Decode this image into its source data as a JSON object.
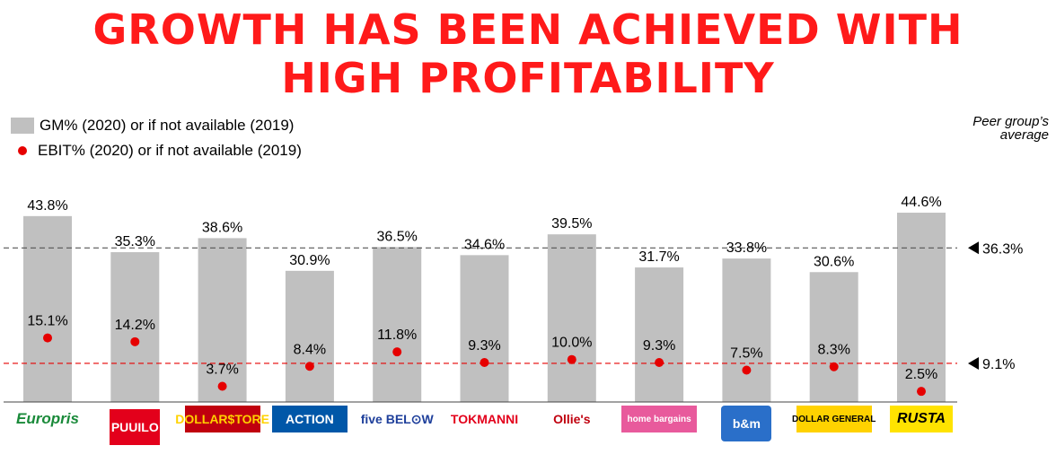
{
  "title": {
    "line1": "GROWTH HAS BEEN ACHIEVED WITH",
    "line2": "HIGH PROFITABILITY"
  },
  "legend": {
    "gm": "GM% (2020) or if not available (2019)",
    "ebit": "EBIT% (2020) or if not available (2019)"
  },
  "peer_label": "Peer group’s average",
  "colors": {
    "title": "#ff1a1a",
    "bar": "#c0c0c0",
    "dot": "#e60000",
    "gm_avg_line": "#555555",
    "ebit_avg_line": "#e60000"
  },
  "logos": [
    {
      "text": "Europris",
      "color": "#1a8a3a",
      "bg": ""
    },
    {
      "text": "PUUILO",
      "color": "#ffffff",
      "bg": "#e3001b"
    },
    {
      "text": "DOLLAR$TORE",
      "color": "#ffd200",
      "bg": "#c0000e"
    },
    {
      "text": "ACTION",
      "color": "#ffffff",
      "bg": "#0057a8"
    },
    {
      "text": "five BEL⊙W",
      "color": "#1e3f9b",
      "bg": ""
    },
    {
      "text": "TOKMANNI",
      "color": "#e3001b",
      "bg": ""
    },
    {
      "text": "Ollie's",
      "color": "#c0000e",
      "bg": ""
    },
    {
      "text": "home bargains",
      "color": "#ffffff",
      "bg": "#e85a9c"
    },
    {
      "text": "b&m",
      "color": "#ffffff",
      "bg": "#2a6fc9"
    },
    {
      "text": "DOLLAR GENERAL",
      "color": "#000000",
      "bg": "#ffd200"
    },
    {
      "text": "RUSTA",
      "color": "#000000",
      "bg": "#ffe300"
    }
  ],
  "chart_data": {
    "type": "bar",
    "categories": [
      "Europris",
      "Puuilo",
      "Dollarstore",
      "Action",
      "Five Below",
      "Tokmanni",
      "Ollie's",
      "Home Bargains",
      "B&M",
      "Dollar General",
      "Rusta"
    ],
    "series": [
      {
        "name": "GM% (2020) or if not available (2019)",
        "kind": "bar",
        "values": [
          43.8,
          35.3,
          38.6,
          30.9,
          36.5,
          34.6,
          39.5,
          31.7,
          33.8,
          30.6,
          44.6
        ],
        "labels": [
          "43.8%",
          "35.3%",
          "38.6%",
          "30.9%",
          "36.5%",
          "34.6%",
          "39.5%",
          "31.7%",
          "33.8%",
          "30.6%",
          "44.6%"
        ]
      },
      {
        "name": "EBIT% (2020) or if not available (2019)",
        "kind": "dot",
        "values": [
          15.1,
          14.2,
          3.7,
          8.4,
          11.8,
          9.3,
          10.0,
          9.3,
          7.5,
          8.3,
          2.5
        ],
        "labels": [
          "15.1%",
          "14.2%",
          "3.7%",
          "8.4%",
          "11.8%",
          "9.3%",
          "10.0%",
          "9.3%",
          "7.5%",
          "8.3%",
          "2.5%"
        ]
      }
    ],
    "averages": [
      {
        "series": "GM%",
        "value": 36.3,
        "label": "36.3%"
      },
      {
        "series": "EBIT%",
        "value": 9.1,
        "label": "9.1%"
      }
    ],
    "ylim": [
      0,
      45
    ],
    "grid": false,
    "legend_position": "top-left"
  }
}
